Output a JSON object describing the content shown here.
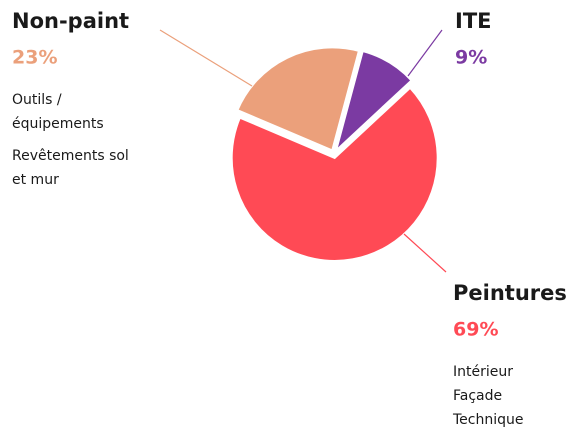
{
  "chart_data": {
    "type": "pie",
    "categories": [
      "ITE",
      "Peintures",
      "Non-paint"
    ],
    "values": [
      9,
      69,
      23
    ],
    "value_labels": [
      "9%",
      "69%",
      "23%"
    ],
    "colors": [
      "#7b3aa2",
      "#ff4a55",
      "#eba07b"
    ],
    "details": [
      [],
      [
        "Intérieur",
        "Façade",
        "Technique"
      ],
      [
        "Outils /",
        "équipements",
        "Revêtements sol",
        "et mur"
      ]
    ]
  }
}
